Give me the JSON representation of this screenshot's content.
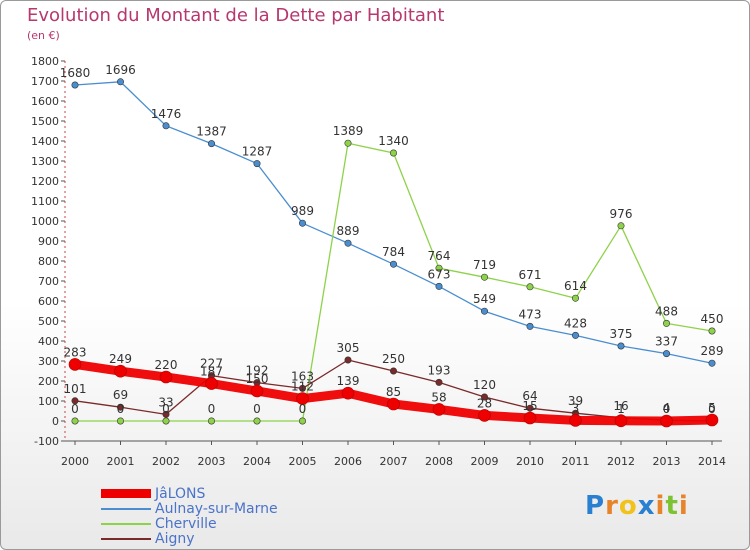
{
  "title": "Evolution du Montant de la Dette par Habitant",
  "subtitle": "(en €)",
  "brand": {
    "letters": [
      {
        "ch": "P",
        "color": "#2a7fd0"
      },
      {
        "ch": "r",
        "color": "#e7842a"
      },
      {
        "ch": "o",
        "color": "#f1c21b"
      },
      {
        "ch": "x",
        "color": "#2a7fd0"
      },
      {
        "ch": "i",
        "color": "#e7842a"
      },
      {
        "ch": "t",
        "color": "#7dc232"
      },
      {
        "ch": "i",
        "color": "#e7842a"
      }
    ]
  },
  "chart_data": {
    "type": "line",
    "x": [
      "2000",
      "2001",
      "2002",
      "2003",
      "2004",
      "2005",
      "2006",
      "2007",
      "2008",
      "2009",
      "2010",
      "2011",
      "2012",
      "2013",
      "2014"
    ],
    "ylim": [
      -100,
      1800
    ],
    "y_ticks": [
      "-100",
      "0",
      "100",
      "200",
      "300",
      "400",
      "500",
      "600",
      "700",
      "800",
      "900",
      "1000",
      "1100",
      "1200",
      "1300",
      "1400",
      "1500",
      "1600",
      "1700",
      "1800"
    ],
    "grid": false,
    "legend_position": "bottom-left",
    "series": [
      {
        "name": "JâLONS",
        "color": "#ee0000",
        "values": [
          283,
          249,
          220,
          187,
          150,
          112,
          139,
          85,
          58,
          28,
          15,
          3,
          1,
          0,
          5
        ],
        "labels": [
          "283",
          "249",
          "220",
          "187",
          "150",
          "112",
          "139",
          "85",
          "58",
          "28",
          "15",
          "3",
          "1",
          "0",
          "5"
        ]
      },
      {
        "name": "Aulnay-sur-Marne",
        "color": "#4a8ed0",
        "values": [
          1680,
          1696,
          1476,
          1387,
          1287,
          989,
          889,
          784,
          673,
          549,
          473,
          428,
          375,
          337,
          289
        ],
        "labels": [
          "1680",
          "1696",
          "1476",
          "1387",
          "1287",
          "989",
          "889",
          "784",
          "673",
          "549",
          "473",
          "428",
          "375",
          "337",
          "289"
        ]
      },
      {
        "name": "Cherville",
        "color": "#8ed24a",
        "values": [
          0,
          0,
          0,
          0,
          0,
          0,
          1389,
          1340,
          764,
          719,
          671,
          614,
          976,
          488,
          450
        ],
        "labels": [
          "0",
          "0",
          "0",
          "0",
          "0",
          "0",
          "1389",
          "1340",
          "764",
          "719",
          "671",
          "614",
          "976",
          "488",
          "450"
        ]
      },
      {
        "name": "Aigny",
        "color": "#7a2a2a",
        "values": [
          101,
          69,
          33,
          227,
          192,
          163,
          305,
          250,
          193,
          120,
          64,
          39,
          16,
          4,
          0
        ],
        "labels": [
          "101",
          "69",
          "33",
          "227",
          "192",
          "163",
          "305",
          "250",
          "193",
          "120",
          "64",
          "39",
          "16",
          "4",
          "0"
        ]
      }
    ]
  }
}
